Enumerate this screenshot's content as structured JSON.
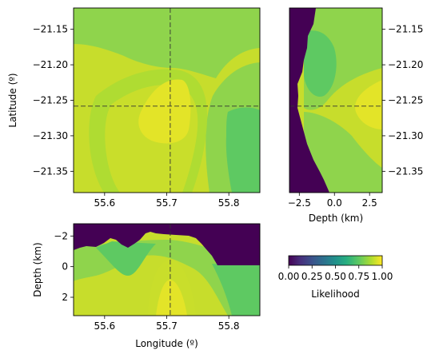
{
  "chart_data": [
    {
      "type": "heatmap",
      "panel": "map-view",
      "xlabel": "",
      "ylabel": "Latitude (º)",
      "xlim": [
        55.55,
        55.85
      ],
      "ylim": [
        -21.38,
        -21.12
      ],
      "xticks": [
        55.6,
        55.7,
        55.8
      ],
      "xtick_labels": [
        "55.6",
        "55.7",
        "55.8"
      ],
      "yticks": [
        -21.15,
        -21.2,
        -21.25,
        -21.3,
        -21.35
      ],
      "ytick_labels": [
        "−21.15",
        "−21.20",
        "−21.25",
        "−21.30",
        "−21.35"
      ],
      "crosshair": {
        "x": 55.707,
        "y": -21.26
      },
      "likelihood_peak": {
        "x": 55.71,
        "y": -21.27,
        "value": 1.0
      }
    },
    {
      "type": "heatmap",
      "panel": "depth-latitude-section",
      "xlabel": "Depth (km)",
      "ylabel": "",
      "xlim": [
        -3.2,
        3.4
      ],
      "ylim": [
        -21.38,
        -21.12
      ],
      "xticks": [
        -2.5,
        0.0,
        2.5
      ],
      "xtick_labels": [
        "−2.5",
        "0.0",
        "2.5"
      ],
      "yticks": [
        -21.15,
        -21.2,
        -21.25,
        -21.3,
        -21.35
      ],
      "ytick_labels": [
        "−21.15",
        "−21.20",
        "−21.25",
        "−21.30",
        "−21.35"
      ],
      "crosshair": {
        "y": -21.26
      }
    },
    {
      "type": "heatmap",
      "panel": "longitude-depth-section",
      "xlabel": "Longitude (º)",
      "ylabel": "Depth (km)",
      "xlim": [
        55.55,
        55.85
      ],
      "ylim": [
        3.2,
        -2.8
      ],
      "xticks": [
        55.6,
        55.7,
        55.8
      ],
      "xtick_labels": [
        "55.6",
        "55.7",
        "55.8"
      ],
      "yticks": [
        -2,
        0,
        2
      ],
      "ytick_labels": [
        "−2",
        "0",
        "2"
      ],
      "crosshair": {
        "x": 55.707
      }
    }
  ],
  "colorbar": {
    "label": "Likelihood",
    "range": [
      0.0,
      1.0
    ],
    "ticks": [
      0.0,
      0.25,
      0.5,
      0.75,
      1.0
    ],
    "tick_labels": [
      "0.00",
      "0.25",
      "0.50",
      "0.75",
      "1.00"
    ],
    "colormap": "viridis",
    "colors": [
      "#440154",
      "#3b528b",
      "#21918c",
      "#5ec962",
      "#fde725"
    ]
  }
}
